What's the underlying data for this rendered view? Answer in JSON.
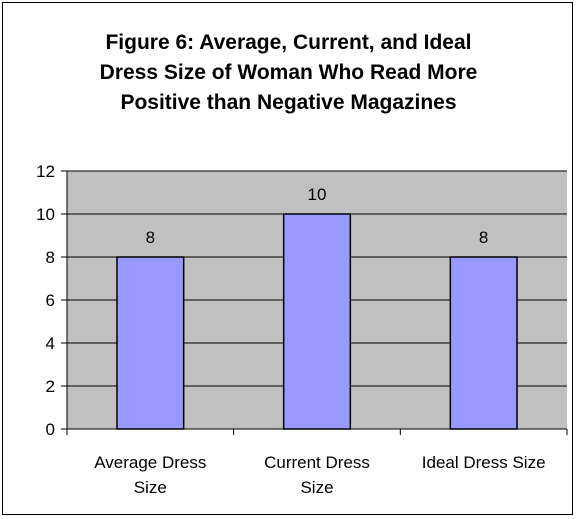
{
  "chart_data": {
    "type": "bar",
    "title": "Figure 6: Average, Current, and Ideal Dress Size of Woman Who Read More Positive than Negative Magazines",
    "title_lines": [
      "Figure 6: Average, Current, and Ideal",
      "Dress Size of Woman Who Read More",
      "Positive than Negative Magazines"
    ],
    "categories": [
      "Average Dress Size",
      "Current Dress Size",
      "Ideal Dress Size"
    ],
    "category_lines": [
      [
        "Average Dress",
        "Size"
      ],
      [
        "Current Dress",
        "Size"
      ],
      [
        "Ideal Dress Size"
      ]
    ],
    "values": [
      8,
      10,
      8
    ],
    "data_labels": [
      "8",
      "10",
      "8"
    ],
    "ylim": [
      0,
      12
    ],
    "yticks": [
      0,
      2,
      4,
      6,
      8,
      10,
      12
    ],
    "xlabel": "",
    "ylabel": "",
    "grid": true,
    "legend": "none",
    "colors": {
      "bar_fill": "#9999ff",
      "bar_stroke": "#000000",
      "plot_background": "#c0c0c0",
      "gridline": "#000000"
    }
  }
}
